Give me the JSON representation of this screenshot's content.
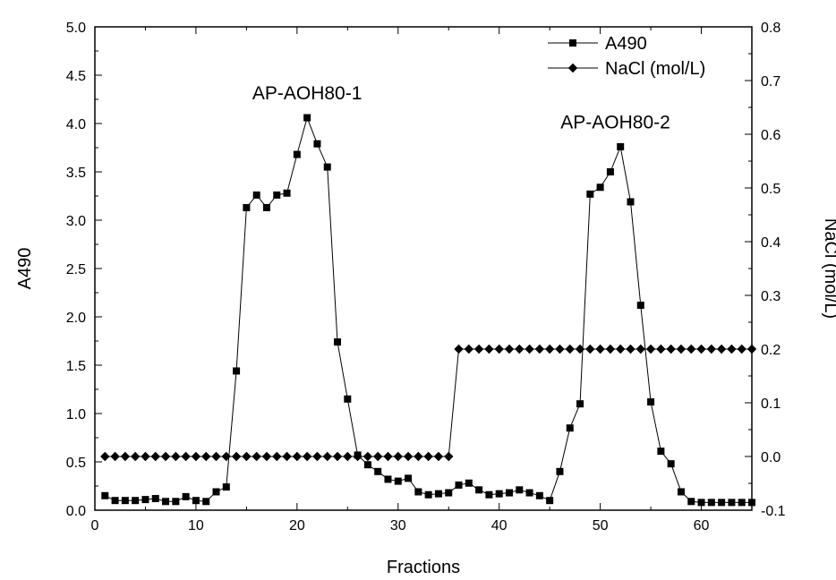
{
  "chart_data": {
    "type": "line",
    "title": "",
    "xlabel": "Fractions",
    "ylabel": "A490",
    "y2label": "NaCl (mol/L)",
    "xlim": [
      0,
      65
    ],
    "ylim": [
      0,
      5
    ],
    "y2lim": [
      -0.1,
      0.8
    ],
    "xticks": [
      0,
      10,
      20,
      30,
      40,
      50,
      60
    ],
    "yticks": [
      0.0,
      0.5,
      1.0,
      1.5,
      2.0,
      2.5,
      3.0,
      3.5,
      4.0,
      4.5,
      5.0
    ],
    "y2ticks": [
      -0.1,
      0.0,
      0.1,
      0.2,
      0.3,
      0.4,
      0.5,
      0.6,
      0.7,
      0.8
    ],
    "grid": false,
    "legend_position": "top-right",
    "series": [
      {
        "name": "A490",
        "axis": "left",
        "marker": "square",
        "x": [
          1,
          2,
          3,
          4,
          5,
          6,
          7,
          8,
          9,
          10,
          11,
          12,
          13,
          14,
          15,
          16,
          17,
          18,
          19,
          20,
          21,
          22,
          23,
          24,
          25,
          26,
          27,
          28,
          29,
          30,
          31,
          32,
          33,
          34,
          35,
          36,
          37,
          38,
          39,
          40,
          41,
          42,
          43,
          44,
          45,
          46,
          47,
          48,
          49,
          50,
          51,
          52,
          53,
          54,
          55,
          56,
          57,
          58,
          59,
          60,
          61,
          62,
          63,
          64,
          65
        ],
        "y": [
          0.15,
          0.1,
          0.1,
          0.1,
          0.11,
          0.12,
          0.09,
          0.09,
          0.14,
          0.1,
          0.09,
          0.19,
          0.24,
          1.44,
          3.13,
          3.26,
          3.13,
          3.26,
          3.28,
          3.68,
          4.06,
          3.79,
          3.55,
          1.74,
          1.15,
          0.57,
          0.47,
          0.4,
          0.32,
          0.3,
          0.33,
          0.19,
          0.16,
          0.17,
          0.18,
          0.26,
          0.28,
          0.21,
          0.16,
          0.17,
          0.18,
          0.21,
          0.18,
          0.15,
          0.1,
          0.4,
          0.85,
          1.1,
          3.27,
          3.34,
          3.5,
          3.76,
          3.19,
          2.12,
          1.12,
          0.61,
          0.48,
          0.19,
          0.09,
          0.08,
          0.08,
          0.08,
          0.08,
          0.08,
          0.08
        ]
      },
      {
        "name": "NaCl (mol/L)",
        "axis": "right",
        "marker": "diamond",
        "x": [
          1,
          2,
          3,
          4,
          5,
          6,
          7,
          8,
          9,
          10,
          11,
          12,
          13,
          14,
          15,
          16,
          17,
          18,
          19,
          20,
          21,
          22,
          23,
          24,
          25,
          26,
          27,
          28,
          29,
          30,
          31,
          32,
          33,
          34,
          35,
          36,
          37,
          38,
          39,
          40,
          41,
          42,
          43,
          44,
          45,
          46,
          47,
          48,
          49,
          50,
          51,
          52,
          53,
          54,
          55,
          56,
          57,
          58,
          59,
          60,
          61,
          62,
          63,
          64,
          65
        ],
        "y": [
          0,
          0,
          0,
          0,
          0,
          0,
          0,
          0,
          0,
          0,
          0,
          0,
          0,
          0,
          0,
          0,
          0,
          0,
          0,
          0,
          0,
          0,
          0,
          0,
          0,
          0,
          0,
          0,
          0,
          0,
          0,
          0,
          0,
          0,
          0,
          0.2,
          0.2,
          0.2,
          0.2,
          0.2,
          0.2,
          0.2,
          0.2,
          0.2,
          0.2,
          0.2,
          0.2,
          0.2,
          0.2,
          0.2,
          0.2,
          0.2,
          0.2,
          0.2,
          0.2,
          0.2,
          0.2,
          0.2,
          0.2,
          0.2,
          0.2,
          0.2,
          0.2,
          0.2,
          0.2
        ]
      }
    ],
    "annotations": [
      {
        "text": "AP-AOH80-1",
        "x": 21,
        "y": 4.25
      },
      {
        "text": "AP-AOH80-2",
        "x": 51.5,
        "y": 3.95
      }
    ]
  }
}
